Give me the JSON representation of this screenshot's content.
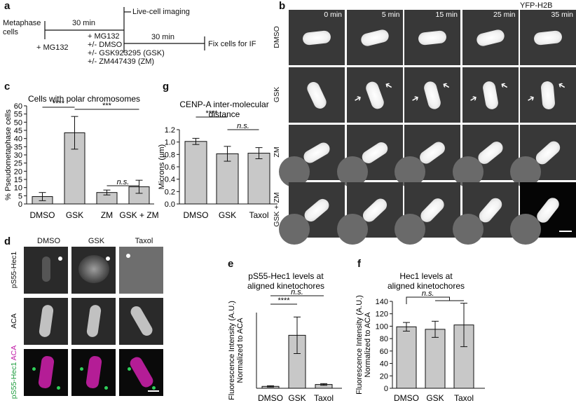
{
  "panel_labels": {
    "a": "a",
    "b": "b",
    "c": "c",
    "d": "d",
    "e": "e",
    "f": "f",
    "g": "g"
  },
  "panel_a": {
    "metaphase_cells": "Metaphase\ncells",
    "first_interval": "30 min",
    "mg132_first": "+ MG132",
    "treatments": [
      "+ MG132",
      "+/- DMSO",
      "+/- GSK923295 (GSK)",
      "+/- ZM447439 (ZM)"
    ],
    "live_imaging": "Live-cell imaging",
    "second_interval": "30 min",
    "fix": "Fix cells for IF"
  },
  "panel_b": {
    "channel": "YFP-H2B",
    "timepoints": [
      "0 min",
      "5 min",
      "15 min",
      "25 min",
      "35 min"
    ],
    "rows": [
      "DMSO",
      "GSK",
      "ZM",
      "GSK + ZM"
    ]
  },
  "panel_d": {
    "columns": [
      "DMSO",
      "GSK",
      "Taxol"
    ],
    "rows": [
      "pS55-Hec1",
      "ACA"
    ],
    "merge_label_green": "pS55-Hec1",
    "merge_label_magenta": "ACA"
  },
  "chart_data": [
    {
      "id": "c",
      "type": "bar",
      "title": "Cells with polar chromosomes",
      "ylabel": "% Pseudometaphase cells",
      "xlabel": "",
      "categories": [
        "DMSO",
        "GSK",
        "ZM",
        "GSK + ZM"
      ],
      "values": [
        4.5,
        43.5,
        7,
        10.5
      ],
      "errors": [
        2.5,
        10,
        1.5,
        4
      ],
      "ylim": [
        0,
        60
      ],
      "yticks": [
        0,
        5,
        10,
        15,
        20,
        25,
        30,
        35,
        40,
        45,
        50,
        55,
        60
      ],
      "significance": [
        {
          "from": 0,
          "to": 1,
          "label": "****"
        },
        {
          "from": 1,
          "to": 3,
          "label": "***"
        },
        {
          "from": 2,
          "to": 3,
          "label": "n.s."
        }
      ]
    },
    {
      "id": "g",
      "type": "bar",
      "title": "CENP-A inter-molecular\ndistance",
      "ylabel": "Microns (µm)",
      "xlabel": "",
      "categories": [
        "DMSO",
        "GSK",
        "Taxol"
      ],
      "values": [
        1.01,
        0.81,
        0.82
      ],
      "errors": [
        0.05,
        0.12,
        0.09
      ],
      "ylim": [
        0,
        1.2
      ],
      "yticks": [
        0.0,
        0.2,
        0.4,
        0.6,
        0.8,
        1.0,
        1.2
      ],
      "significance": [
        {
          "from": 0,
          "to": 1,
          "label": "****"
        },
        {
          "from": 1,
          "to": 2,
          "label": "n.s."
        }
      ]
    },
    {
      "id": "e",
      "type": "bar",
      "title": "pS55-Hec1 levels at\naligned kinetochores",
      "ylabel": "Fluorescence Intensity (A.U.)\nNormalized to ACA",
      "xlabel": "",
      "categories": [
        "DMSO",
        "GSK",
        "Taxol"
      ],
      "values": [
        1.5,
        42,
        3
      ],
      "errors": [
        0.5,
        14.5,
        0.7
      ],
      "ylim": [
        0,
        60
      ],
      "yticks": [],
      "significance": [
        {
          "from": 0,
          "to": 1,
          "label": "****"
        },
        {
          "from": 0,
          "to": 2,
          "label": "n.s."
        }
      ]
    },
    {
      "id": "f",
      "type": "bar",
      "title": "Hec1 levels at\naligned kinetochores",
      "ylabel": "Fluorescence Intensity (A.U.)\nNormalized to ACA",
      "xlabel": "",
      "categories": [
        "DMSO",
        "GSK",
        "Taxol"
      ],
      "values": [
        99,
        95,
        102
      ],
      "errors": [
        7,
        13,
        35
      ],
      "ylim": [
        0,
        140
      ],
      "yticks": [
        0,
        20,
        40,
        60,
        80,
        100,
        120,
        140
      ],
      "significance": [
        {
          "from": 0,
          "to": [
            1,
            2
          ],
          "label": "n.s."
        }
      ]
    }
  ]
}
